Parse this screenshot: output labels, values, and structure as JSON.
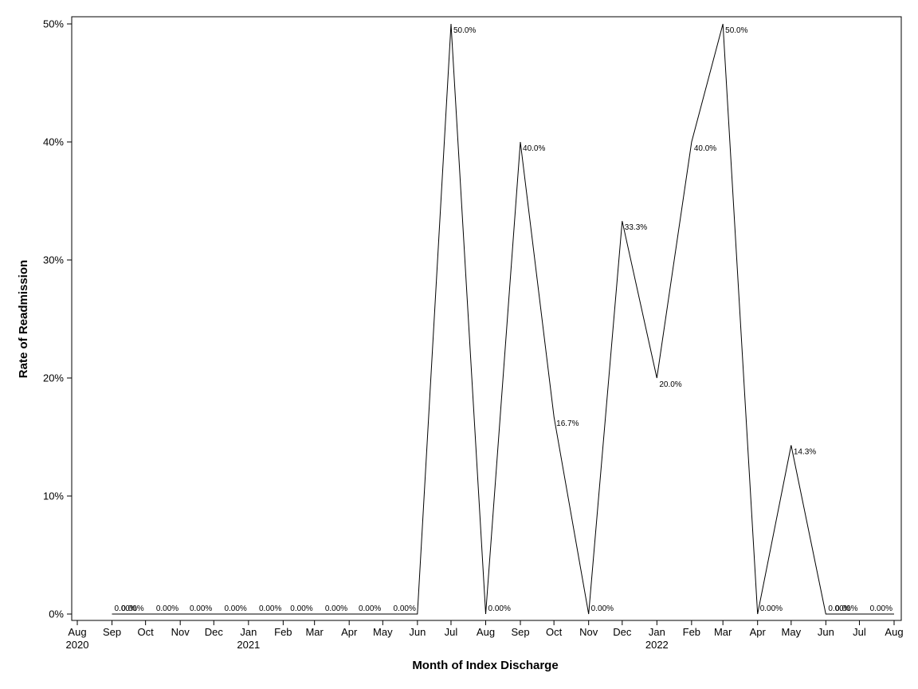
{
  "chart_data": {
    "type": "line",
    "xlabel": "Month of Index Discharge",
    "ylabel": "Rate of Readmission",
    "ylim": [
      0,
      50
    ],
    "y_ticks": [
      "0%",
      "10%",
      "20%",
      "30%",
      "40%",
      "50%"
    ],
    "x_ticks": [
      {
        "month": "Aug",
        "year": "2020"
      },
      {
        "month": "Sep",
        "year": ""
      },
      {
        "month": "Oct",
        "year": ""
      },
      {
        "month": "Nov",
        "year": ""
      },
      {
        "month": "Dec",
        "year": ""
      },
      {
        "month": "Jan",
        "year": "2021"
      },
      {
        "month": "Feb",
        "year": ""
      },
      {
        "month": "Mar",
        "year": ""
      },
      {
        "month": "Apr",
        "year": ""
      },
      {
        "month": "May",
        "year": ""
      },
      {
        "month": "Jun",
        "year": ""
      },
      {
        "month": "Jul",
        "year": ""
      },
      {
        "month": "Aug",
        "year": ""
      },
      {
        "month": "Sep",
        "year": ""
      },
      {
        "month": "Oct",
        "year": ""
      },
      {
        "month": "Nov",
        "year": ""
      },
      {
        "month": "Dec",
        "year": ""
      },
      {
        "month": "Jan",
        "year": "2022"
      },
      {
        "month": "Feb",
        "year": ""
      },
      {
        "month": "Mar",
        "year": ""
      },
      {
        "month": "Apr",
        "year": ""
      },
      {
        "month": "May",
        "year": ""
      },
      {
        "month": "Jun",
        "year": ""
      },
      {
        "month": "Jul",
        "year": ""
      },
      {
        "month": "Aug",
        "year": ""
      }
    ],
    "x_range": [
      "2020-08",
      "2022-08"
    ],
    "points": [
      {
        "x": "2020-09",
        "y": 0,
        "label": "0.00%"
      },
      {
        "x": "2020-10",
        "y": 0,
        "label": "0.00%"
      },
      {
        "x": "2020-11",
        "y": 0,
        "label": "0.00%"
      },
      {
        "x": "2020-12",
        "y": 0,
        "label": "0.00%"
      },
      {
        "x": "2021-01",
        "y": 0,
        "label": "0.00%"
      },
      {
        "x": "2021-02",
        "y": 0,
        "label": "0.00%"
      },
      {
        "x": "2021-03",
        "y": 0,
        "label": "0.00%"
      },
      {
        "x": "2021-04",
        "y": 0,
        "label": "0.00%"
      },
      {
        "x": "2021-05",
        "y": 0,
        "label": "0.00%"
      },
      {
        "x": "2021-06",
        "y": 0,
        "label": "0.00%"
      },
      {
        "x": "2021-07",
        "y": 50.0,
        "label": "50.0%"
      },
      {
        "x": "2021-08",
        "y": 0,
        "label": "0.00%"
      },
      {
        "x": "2021-09",
        "y": 40.0,
        "label": "40.0%"
      },
      {
        "x": "2021-10",
        "y": 16.7,
        "label": "16.7%"
      },
      {
        "x": "2021-11",
        "y": 0,
        "label": "0.00%"
      },
      {
        "x": "2021-12",
        "y": 33.3,
        "label": "33.3%"
      },
      {
        "x": "2022-01",
        "y": 20.0,
        "label": "20.0%"
      },
      {
        "x": "2022-02",
        "y": 40.0,
        "label": "40.0%"
      },
      {
        "x": "2022-03",
        "y": 50.0,
        "label": "50.0%"
      },
      {
        "x": "2022-04",
        "y": 0,
        "label": "0.00%"
      },
      {
        "x": "2022-05",
        "y": 14.3,
        "label": "14.3%"
      },
      {
        "x": "2022-06",
        "y": 0,
        "label": "0.00%"
      },
      {
        "x": "2022-07",
        "y": 0,
        "label": "0.00%"
      },
      {
        "x": "2022-08",
        "y": 0,
        "label": "0.00%"
      }
    ],
    "grid": false,
    "line_color": "#000000"
  }
}
